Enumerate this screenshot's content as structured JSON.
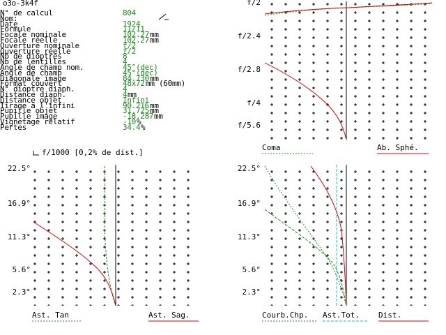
{
  "header": {
    "title": "o3o-3k4f"
  },
  "params": [
    {
      "label": "N° de calcul",
      "value": "804"
    },
    {
      "label": "Nom:",
      "value": ""
    },
    {
      "label": "Date",
      "value": "1924"
    },
    {
      "label": "Formule",
      "value": "11/11"
    },
    {
      "label": "Focale nominale",
      "value": "102.27",
      "unit": "mm"
    },
    {
      "label": "Focale réelle",
      "value": "102.27",
      "unit": "mm"
    },
    {
      "label": "Ouverture nominale",
      "value": "f/2"
    },
    {
      "label": "Ouverture réelle",
      "value": "f/2"
    },
    {
      "label": "Nb de dioptres",
      "value": "8"
    },
    {
      "label": "Nb de lentilles",
      "value": "4"
    },
    {
      "label": "Angle de champ nom.",
      "value": "45°(dec)"
    },
    {
      "label": "Angle de champ",
      "value": "45°(dec)"
    },
    {
      "label": "Diagonale image",
      "value": "84.730",
      "unit": "mm"
    },
    {
      "label": "Format couvert",
      "value": "48x72",
      "unit": "mm (60mm)"
    },
    {
      "label": "N° dioptre diaph.",
      "value": "4"
    },
    {
      "label": "Distance diaph.",
      "value": "4",
      "unit": "mm"
    },
    {
      "label": "Distance objet",
      "value": "Infini"
    },
    {
      "label": "Tirage à l'infini",
      "value": "90.216",
      "unit": "mm"
    },
    {
      "label": "Pupille objet",
      "value": "31.725",
      "unit": "mm"
    },
    {
      "label": "Pupille image",
      "value": "-18.287",
      "unit": "mm"
    },
    {
      "label": "Vignetage relatif",
      "value": "-10",
      "unit": "%"
    },
    {
      "label": "Pertes",
      "value": "34.4",
      "unit": "%"
    }
  ],
  "scale_note": "f/1000 [0,2% de dist.]",
  "plots": [
    {
      "y_labels": [
        "f/2",
        "f/2.4",
        "f/2.8",
        "f/4",
        "f/5.6"
      ],
      "legend": [
        "Coma",
        "Ab. Sphé."
      ]
    },
    {
      "y_labels": [
        "22.5°",
        "16.9°",
        "11.3°",
        "5.6°",
        "2.3°"
      ],
      "legend": [
        "Ast. Tan",
        "Ast. Sag."
      ]
    },
    {
      "y_labels": [
        "22.5°",
        "16.9°",
        "11.3°",
        "5.6°",
        "2.3°"
      ],
      "legend": [
        "Courb.Chp.",
        "Ast.Tot.",
        "Dist."
      ]
    }
  ]
}
